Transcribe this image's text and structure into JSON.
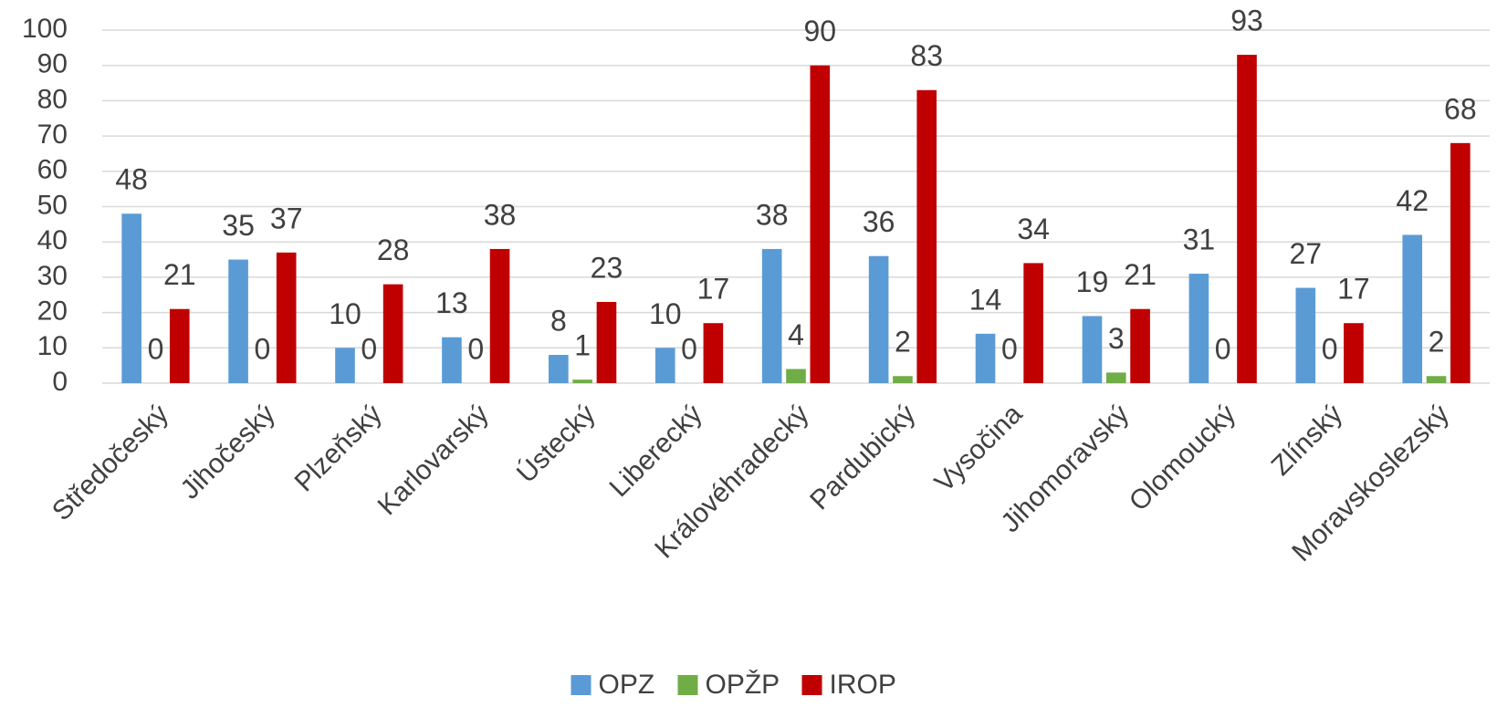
{
  "chart_data": {
    "type": "bar",
    "categories": [
      "Středočeský",
      "Jihočeský",
      "Plzeňský",
      "Karlovarský",
      "Ústecký",
      "Liberecký",
      "Královéhradecký",
      "Pardubický",
      "Vysočina",
      "Jihomoravský",
      "Olomoucký",
      "Zlínský",
      "Moravskoslezský"
    ],
    "series": [
      {
        "name": "OPZ",
        "color": "#5b9bd5",
        "values": [
          48,
          35,
          10,
          13,
          8,
          10,
          38,
          36,
          14,
          19,
          31,
          27,
          42
        ]
      },
      {
        "name": "OPŽP",
        "color": "#70ad47",
        "values": [
          0,
          0,
          0,
          0,
          1,
          0,
          4,
          2,
          0,
          3,
          0,
          0,
          2
        ]
      },
      {
        "name": "IROP",
        "color": "#c00000",
        "values": [
          21,
          37,
          28,
          38,
          23,
          17,
          90,
          83,
          34,
          21,
          93,
          17,
          68
        ]
      }
    ],
    "ylim": [
      0,
      100
    ],
    "yticks": [
      0,
      10,
      20,
      30,
      40,
      50,
      60,
      70,
      80,
      90,
      100
    ],
    "grid": true,
    "legend": "bottom"
  }
}
